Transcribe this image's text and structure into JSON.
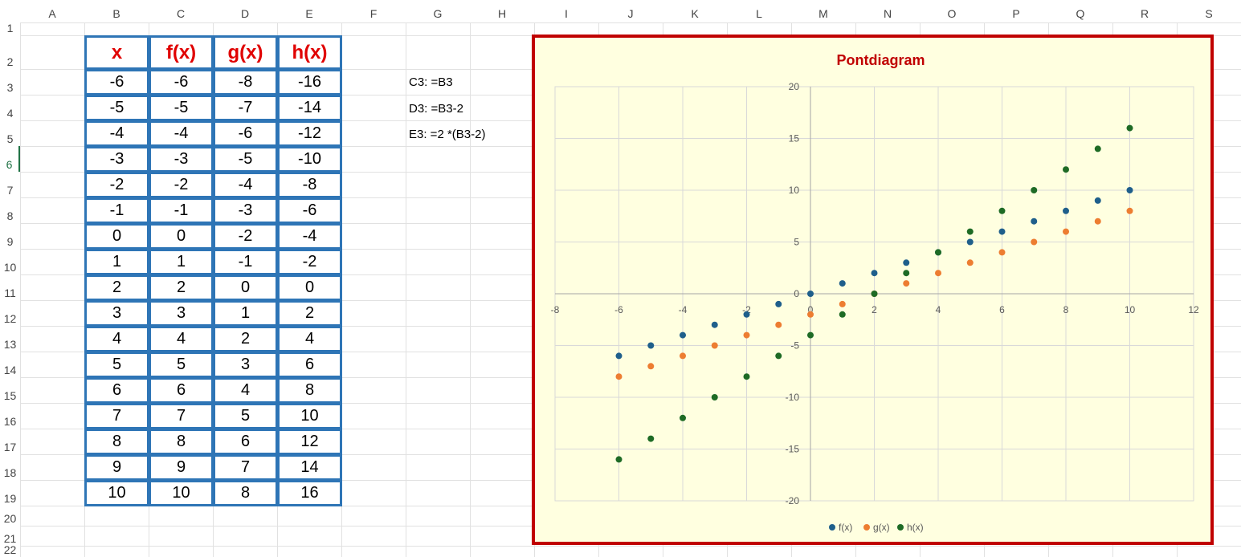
{
  "sheet": {
    "columns": [
      "A",
      "B",
      "C",
      "D",
      "E",
      "F",
      "G",
      "H",
      "I",
      "J",
      "K",
      "L",
      "M",
      "N",
      "O",
      "P",
      "Q",
      "R",
      "S"
    ],
    "rows": [
      "1",
      "2",
      "3",
      "4",
      "5",
      "6",
      "7",
      "8",
      "9",
      "10",
      "11",
      "12",
      "13",
      "14",
      "15",
      "16",
      "17",
      "18",
      "19",
      "20",
      "21",
      "22"
    ],
    "selected_row": "6"
  },
  "table": {
    "headers": [
      "x",
      "f(x)",
      "g(x)",
      "h(x)"
    ],
    "rows": [
      [
        "-6",
        "-6",
        "-8",
        "-16"
      ],
      [
        "-5",
        "-5",
        "-7",
        "-14"
      ],
      [
        "-4",
        "-4",
        "-6",
        "-12"
      ],
      [
        "-3",
        "-3",
        "-5",
        "-10"
      ],
      [
        "-2",
        "-2",
        "-4",
        "-8"
      ],
      [
        "-1",
        "-1",
        "-3",
        "-6"
      ],
      [
        "0",
        "0",
        "-2",
        "-4"
      ],
      [
        "1",
        "1",
        "-1",
        "-2"
      ],
      [
        "2",
        "2",
        "0",
        "0"
      ],
      [
        "3",
        "3",
        "1",
        "2"
      ],
      [
        "4",
        "4",
        "2",
        "4"
      ],
      [
        "5",
        "5",
        "3",
        "6"
      ],
      [
        "6",
        "6",
        "4",
        "8"
      ],
      [
        "7",
        "7",
        "5",
        "10"
      ],
      [
        "8",
        "8",
        "6",
        "12"
      ],
      [
        "9",
        "9",
        "7",
        "14"
      ],
      [
        "10",
        "10",
        "8",
        "16"
      ]
    ],
    "border_color": "#2e75b6",
    "header_color": "#e00000"
  },
  "notes": [
    "C3: =B3",
    "D3: =B3-2",
    "E3: =2 *(B3-2)"
  ],
  "chart_data": {
    "type": "scatter",
    "title": "Pontdiagram",
    "xlim": [
      -8,
      12
    ],
    "ylim": [
      -20,
      20
    ],
    "xticks": [
      -8,
      -6,
      -4,
      -2,
      0,
      2,
      4,
      6,
      8,
      10,
      12
    ],
    "yticks": [
      -20,
      -15,
      -10,
      -5,
      0,
      5,
      10,
      15,
      20
    ],
    "x": [
      -6,
      -5,
      -4,
      -3,
      -2,
      -1,
      0,
      1,
      2,
      3,
      4,
      5,
      6,
      7,
      8,
      9,
      10
    ],
    "series": [
      {
        "name": "f(x)",
        "color": "#1f5f8b",
        "values": [
          -6,
          -5,
          -4,
          -3,
          -2,
          -1,
          0,
          1,
          2,
          3,
          4,
          5,
          6,
          7,
          8,
          9,
          10
        ]
      },
      {
        "name": "g(x)",
        "color": "#ed7d31",
        "values": [
          -8,
          -7,
          -6,
          -5,
          -4,
          -3,
          -2,
          -1,
          0,
          1,
          2,
          3,
          4,
          5,
          6,
          7,
          8
        ]
      },
      {
        "name": "h(x)",
        "color": "#1e6b25",
        "values": [
          -16,
          -14,
          -12,
          -10,
          -8,
          -6,
          -4,
          -2,
          0,
          2,
          4,
          6,
          8,
          10,
          12,
          14,
          16
        ]
      }
    ],
    "grid": true,
    "legend": "bottom",
    "title_color": "#c00000",
    "background": "#ffffe0",
    "frame_color": "#c00000"
  }
}
